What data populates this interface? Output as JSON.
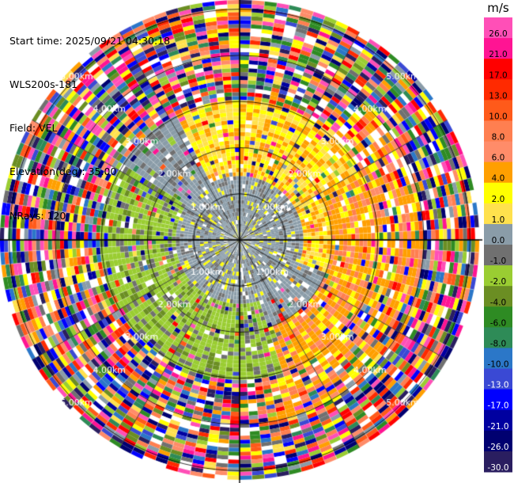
{
  "header": {
    "lines": [
      "Start time: 2025/09/21 04:30:18",
      "WLS200s-181",
      "Field: VEL",
      "Elevation(deg): 35.00",
      "NRays: 120"
    ]
  },
  "chart_data": {
    "type": "heatmap",
    "projection": "polar-ppi",
    "field": "VEL",
    "units": "m/s",
    "n_rays": 120,
    "elevation_deg": 35.0,
    "range_rings_km": [
      1.0,
      2.0,
      3.0,
      4.0,
      5.0
    ],
    "ring_labels": [
      "1.00km",
      "2.00km",
      "3.00km",
      "4.00km",
      "5.00km"
    ],
    "max_range_km": 5.2,
    "colorbar": {
      "label": "m/s",
      "ticks": [
        "26.0",
        "21.0",
        "17.0",
        "13.0",
        "10.0",
        "8.0",
        "6.0",
        "4.0",
        "2.0",
        "1.0",
        "0.0",
        "-1.0",
        "-2.0",
        "-4.0",
        "-6.0",
        "-8.0",
        "-10.0",
        "-13.0",
        "-17.0",
        "-21.0",
        "-26.0",
        "-30.0"
      ],
      "colors": [
        "#ff4fb7",
        "#ff1493",
        "#ff0000",
        "#ff2a00",
        "#ff5a1a",
        "#ff7f50",
        "#ff8c69",
        "#ff9f00",
        "#ffff00",
        "#ffe14d",
        "#8a9ca8",
        "#707070",
        "#9acd32",
        "#6b8e23",
        "#2e8b23",
        "#2e8b57",
        "#2b77c8",
        "#3a49d4",
        "#0000ff",
        "#0000a0",
        "#000070",
        "#2a1e60"
      ]
    },
    "pattern_description_inner": {
      "gray_near_zero_region": "center to ~1.5 km",
      "yellow_positive_region": "north-east sector to ~3 km",
      "green_negative_region": "south-west sector to ~3 km",
      "orange_region": "east sector 2-4 km"
    }
  }
}
